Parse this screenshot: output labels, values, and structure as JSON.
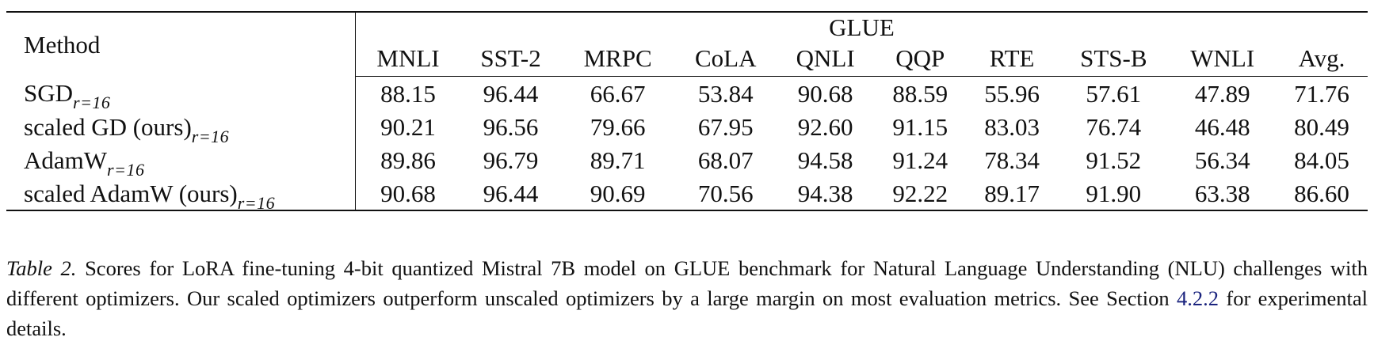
{
  "table": {
    "method_header": "Method",
    "group_header": "GLUE",
    "columns": [
      "MNLI",
      "SST-2",
      "MRPC",
      "CoLA",
      "QNLI",
      "QQP",
      "RTE",
      "STS-B",
      "WNLI",
      "Avg."
    ],
    "rows": [
      {
        "method": "SGD",
        "subscript": "r=16",
        "values": [
          "88.15",
          "96.44",
          "66.67",
          "53.84",
          "90.68",
          "88.59",
          "55.96",
          "57.61",
          "47.89",
          "71.76"
        ],
        "bold": [
          false,
          false,
          false,
          false,
          false,
          false,
          false,
          false,
          false,
          false
        ]
      },
      {
        "method": "scaled GD (ours)",
        "subscript": "r=16",
        "values": [
          "90.21",
          "96.56",
          "79.66",
          "67.95",
          "92.60",
          "91.15",
          "83.03",
          "76.74",
          "46.48",
          "80.49"
        ],
        "bold": [
          false,
          false,
          false,
          false,
          false,
          false,
          false,
          false,
          false,
          false
        ]
      },
      {
        "method": "AdamW",
        "subscript": "r=16",
        "values": [
          "89.86",
          "96.79",
          "89.71",
          "68.07",
          "94.58",
          "91.24",
          "78.34",
          "91.52",
          "56.34",
          "84.05"
        ],
        "bold": [
          false,
          true,
          false,
          false,
          true,
          false,
          false,
          false,
          false,
          false
        ]
      },
      {
        "method": "scaled AdamW (ours)",
        "subscript": "r=16",
        "values": [
          "90.68",
          "96.44",
          "90.69",
          "70.56",
          "94.38",
          "92.22",
          "89.17",
          "91.90",
          "63.38",
          "86.60"
        ],
        "bold": [
          true,
          false,
          true,
          true,
          false,
          true,
          true,
          true,
          true,
          true
        ]
      }
    ]
  },
  "caption": {
    "label": "Table 2.",
    "text_before_ref": " Scores for LoRA fine-tuning 4-bit quantized Mistral 7B model on GLUE benchmark for Natural Language Understanding (NLU) challenges with different optimizers. Our scaled optimizers outperform unscaled optimizers by a large margin on most evaluation metrics. See Section ",
    "ref": "4.2.2",
    "text_after_ref": " for experimental details."
  }
}
